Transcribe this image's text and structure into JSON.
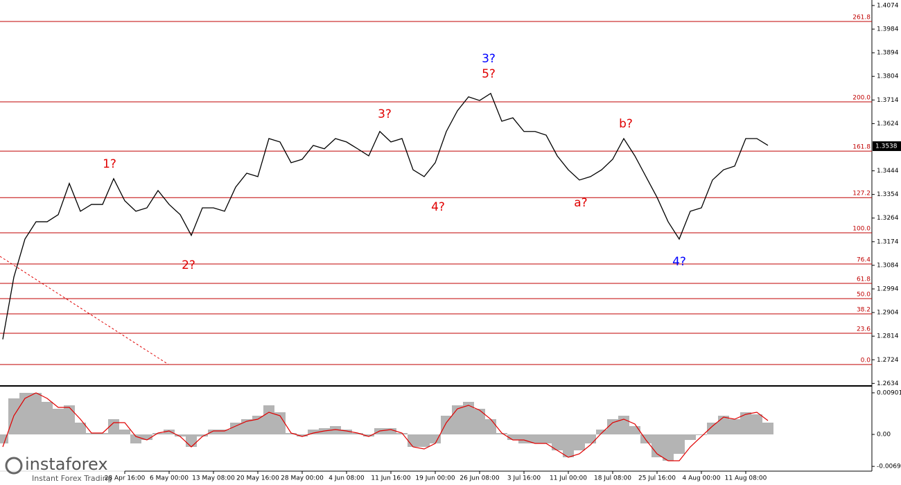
{
  "chart_data": [
    {
      "type": "line",
      "series": [
        {
          "color": "#000000",
          "values": [
            1.2802,
            1.3039,
            1.3184,
            1.325,
            1.325,
            1.3277,
            1.3396,
            1.329,
            1.3316,
            1.3316,
            1.3414,
            1.333,
            1.329,
            1.3303,
            1.3369,
            1.3316,
            1.3277,
            1.3198,
            1.3303,
            1.3303,
            1.329,
            1.3382,
            1.3435,
            1.3422,
            1.3567,
            1.3554,
            1.3475,
            1.3488,
            1.3541,
            1.3528,
            1.3567,
            1.3554,
            1.3528,
            1.3501,
            1.3594,
            1.3554,
            1.3567,
            1.3448,
            1.3422,
            1.3475,
            1.3594,
            1.3673,
            1.3726,
            1.3712,
            1.3739,
            1.3633,
            1.3646,
            1.3594,
            1.3594,
            1.358,
            1.3501,
            1.3448,
            1.3409,
            1.3422,
            1.3448,
            1.3488,
            1.3567,
            1.3501,
            1.3422,
            1.3343,
            1.325,
            1.3184,
            1.329,
            1.3303,
            1.3409,
            1.3448,
            1.3462,
            1.3567,
            1.3567,
            1.3541
          ]
        }
      ],
      "ylim": [
        1.2627,
        1.4095
      ],
      "yticks": [
        1.2634,
        1.2724,
        1.2814,
        1.2904,
        1.2994,
        1.3084,
        1.3174,
        1.3264,
        1.3354,
        1.3444,
        1.3624,
        1.3714,
        1.3804,
        1.3894,
        1.3984,
        1.4074
      ],
      "current_price": 1.3538,
      "level_color": "#c00000",
      "levels": [
        {
          "label": "261.8",
          "price": 1.4013
        },
        {
          "label": "200.0",
          "price": 1.3707
        },
        {
          "label": "161.8",
          "price": 1.3519
        },
        {
          "label": "127.2",
          "price": 1.3342
        },
        {
          "label": "100.0",
          "price": 1.3208
        },
        {
          "label": "76.4",
          "price": 1.3089
        },
        {
          "label": "61.8",
          "price": 1.3015
        },
        {
          "label": "50.0",
          "price": 1.2957
        },
        {
          "label": "38.2",
          "price": 1.2899
        },
        {
          "label": "23.6",
          "price": 1.2825
        },
        {
          "label": "0.0",
          "price": 1.2706
        }
      ],
      "annotations": [
        {
          "text": "1?",
          "color": "#e00000"
        },
        {
          "text": "2?",
          "color": "#e00000"
        },
        {
          "text": "3?",
          "color": "#e00000"
        },
        {
          "text": "4?",
          "color": "#e00000"
        },
        {
          "text": "3?",
          "color": "#0000ff"
        },
        {
          "text": "5?",
          "color": "#e00000"
        },
        {
          "text": "b?",
          "color": "#e00000"
        },
        {
          "text": "a?",
          "color": "#e00000"
        },
        {
          "text": "4?",
          "color": "#0000ff"
        }
      ],
      "watermark": {
        "brand": "instaforex",
        "tagline": "Instant Forex Trading"
      }
    },
    {
      "type": "macd",
      "categories": [
        null,
        null,
        null,
        null,
        null,
        null,
        null,
        null,
        null,
        null,
        null,
        "28 Apr 16:00",
        null,
        null,
        null,
        "6 May 00:00",
        null,
        null,
        null,
        "13 May 08:00",
        null,
        null,
        null,
        "20 May 16:00",
        null,
        null,
        null,
        "28 May 00:00",
        null,
        null,
        null,
        "4 Jun 08:00",
        null,
        null,
        null,
        "11 Jun 16:00",
        null,
        null,
        null,
        "19 Jun 00:00",
        null,
        null,
        null,
        "26 Jun 08:00",
        null,
        null,
        null,
        "3 Jul 16:00",
        null,
        null,
        null,
        "11 Jul 00:00",
        null,
        null,
        null,
        "18 Jul 08:00",
        null,
        null,
        null,
        "25 Jul 16:00",
        null,
        null,
        null,
        "4 Aug 00:00",
        null,
        null,
        null,
        "11 Aug 08:00",
        null,
        null
      ],
      "series": [
        {
          "type": "bar",
          "color": "#b4b4b4",
          "values": [
            -0.00195,
            0.0078,
            0.009,
            0.009,
            0.00705,
            0.00555,
            0.0063,
            0.00255,
            0.0003,
            0.0003,
            0.0033,
            0.00105,
            -0.00195,
            -0.0012,
            0.0003,
            0.00105,
            -0.00045,
            -0.0027,
            -0.00045,
            0.00105,
            0.00105,
            0.00255,
            0.0033,
            0.00405,
            0.0063,
            0.0048,
            0.0003,
            -0.00045,
            0.00105,
            0.00135,
            0.0018,
            0.00105,
            0.0003,
            -0.00045,
            0.00135,
            0.00135,
            0.0003,
            -0.0027,
            -0.0027,
            -0.00195,
            0.00405,
            0.0063,
            0.00705,
            0.00555,
            0.0033,
            0.0003,
            -0.0012,
            -0.00195,
            -0.00195,
            -0.00195,
            -0.00345,
            -0.00495,
            -0.00345,
            -0.00195,
            0.00105,
            0.0033,
            0.00405,
            0.0018,
            -0.00195,
            -0.00495,
            -0.0057,
            -0.0042,
            -0.0012,
            -0.00015,
            0.00255,
            0.00405,
            0.0033,
            0.0048,
            0.00435,
            0.00255
          ]
        },
        {
          "type": "line",
          "color": "#e00000",
          "values": [
            -0.0027,
            0.00405,
            0.0078,
            0.009,
            0.0078,
            0.00585,
            0.00585,
            0.0033,
            0.0003,
            0.0003,
            0.00255,
            0.00255,
            -0.00045,
            -0.0012,
            0.0003,
            0.00075,
            -0.00045,
            -0.0027,
            -0.00045,
            0.00075,
            0.00075,
            0.0018,
            0.00285,
            0.0033,
            0.0048,
            0.00405,
            0.0003,
            -0.00045,
            0.0003,
            0.00075,
            0.00105,
            0.00075,
            0.0003,
            -0.00045,
            0.00075,
            0.00105,
            0.0003,
            -0.0027,
            -0.00315,
            -0.00195,
            0.00255,
            0.00555,
            0.0063,
            0.00525,
            0.0033,
            0.0003,
            -0.0012,
            -0.0012,
            -0.00195,
            -0.00195,
            -0.00345,
            -0.00495,
            -0.0042,
            -0.00225,
            0.0003,
            0.00255,
            0.0033,
            0.00225,
            -0.0012,
            -0.0042,
            -0.0057,
            -0.0057,
            -0.0027,
            -0.00045,
            0.0018,
            0.00375,
            0.0033,
            0.00435,
            0.0048,
            0.003
          ]
        }
      ],
      "ylim": [
        -0.00795,
        0.0102
      ],
      "yticks": [
        0.00901,
        {
          "value": 0,
          "label": "0.00"
        },
        -0.00692
      ]
    }
  ]
}
